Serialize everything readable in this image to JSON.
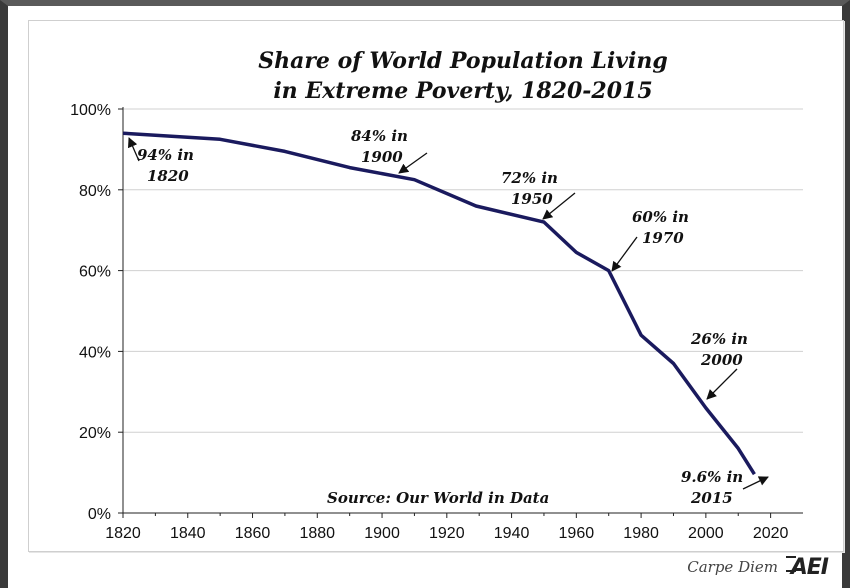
{
  "chart_data": {
    "type": "line",
    "title": [
      "Share of World Population Living",
      "in Extreme Poverty, 1820-2015"
    ],
    "xlabel": "",
    "ylabel": "",
    "xlim": [
      1820,
      2030
    ],
    "ylim": [
      0,
      100
    ],
    "x_ticks": [
      1820,
      1840,
      1860,
      1880,
      1900,
      1920,
      1940,
      1960,
      1980,
      2000,
      2020
    ],
    "y_ticks": [
      {
        "value": 0,
        "label": "0%"
      },
      {
        "value": 20,
        "label": "20%"
      },
      {
        "value": 40,
        "label": "40%"
      },
      {
        "value": 60,
        "label": "60%"
      },
      {
        "value": 80,
        "label": "80%"
      },
      {
        "value": 100,
        "label": "100%"
      }
    ],
    "grid": "horizontal",
    "line_color": "#1a1a5e",
    "series": [
      {
        "x": [
          1820,
          1850,
          1870,
          1890,
          1910,
          1929,
          1950,
          1960,
          1970,
          1980,
          1990,
          2000,
          2010,
          2015
        ],
        "y": [
          94,
          92.5,
          89.5,
          85.5,
          82.5,
          76,
          72,
          64.5,
          60,
          44,
          37,
          26,
          16,
          9.6
        ]
      }
    ],
    "annotations": [
      {
        "lines": [
          "94% in",
          "1820"
        ]
      },
      {
        "lines": [
          "84% in",
          "1900"
        ]
      },
      {
        "lines": [
          "72% in",
          "1950"
        ]
      },
      {
        "lines": [
          "60% in",
          "1970"
        ]
      },
      {
        "lines": [
          "26% in",
          "2000"
        ]
      },
      {
        "lines": [
          "9.6% in",
          "2015"
        ]
      }
    ],
    "source": "Source: Our World in Data"
  },
  "footer": {
    "blog": "Carpe Diem",
    "logo": "AEI"
  }
}
